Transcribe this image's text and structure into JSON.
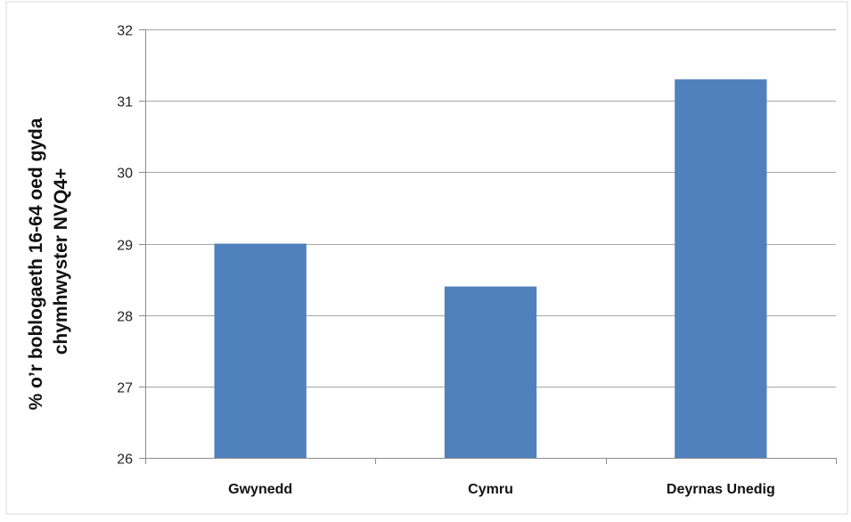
{
  "chart_data": {
    "type": "bar",
    "categories": [
      "Gwynedd",
      "Cymru",
      "Deyrnas Unedig"
    ],
    "values": [
      29.0,
      28.4,
      31.3
    ],
    "ylabel_lines": [
      "% o’r boblogaeth 16-64 oed gyda",
      "chymhwyster NVQ4+"
    ],
    "ylim": [
      26,
      32
    ],
    "yticks": [
      26,
      27,
      28,
      29,
      30,
      31,
      32
    ],
    "grid": true,
    "legend": "none",
    "bar_color": "#4f81bd",
    "grid_color": "#a6a6a6",
    "axis_color": "#8c8c8c"
  }
}
